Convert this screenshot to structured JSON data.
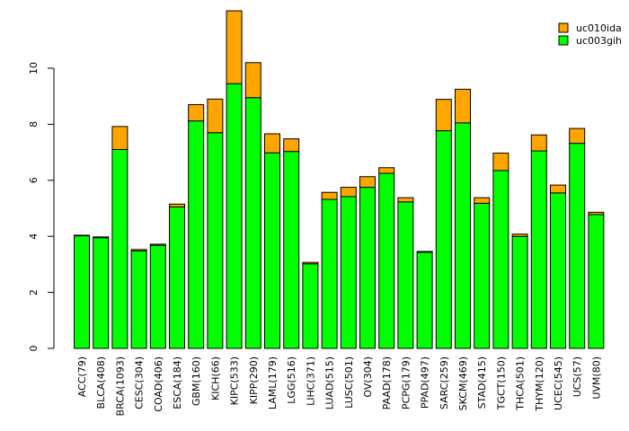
{
  "chart_data": {
    "type": "bar",
    "stacked": true,
    "title": "",
    "xlabel": "",
    "ylabel": "",
    "ylim": [
      0,
      12
    ],
    "yticks": [
      0,
      2,
      4,
      6,
      8,
      10
    ],
    "legend_position": "top-right",
    "categories": [
      "ACC(79)",
      "BLCA(408)",
      "BRCA(1093)",
      "CESC(304)",
      "COAD(406)",
      "ESCA(184)",
      "GBM(160)",
      "KICH(66)",
      "KIPC(533)",
      "KIPP(290)",
      "LAML(179)",
      "LGG(516)",
      "LIHC(371)",
      "LUAD(515)",
      "LUSC(501)",
      "OV(304)",
      "PAAD(178)",
      "PCPG(179)",
      "PPAD(497)",
      "SARC(259)",
      "SKCM(469)",
      "STAD(415)",
      "TGCT(150)",
      "THCA(501)",
      "THYM(120)",
      "UCEC(545)",
      "UCS(57)",
      "UVM(80)"
    ],
    "series": [
      {
        "name": "uc003gih",
        "color": "#00ff00",
        "values": [
          4.02,
          3.95,
          7.1,
          3.48,
          3.68,
          5.05,
          8.12,
          7.7,
          9.45,
          8.95,
          6.98,
          7.03,
          3.02,
          5.32,
          5.42,
          5.75,
          6.25,
          5.23,
          3.43,
          7.77,
          8.05,
          5.18,
          6.35,
          4.0,
          7.05,
          5.55,
          7.32,
          4.78
        ]
      },
      {
        "name": "uc010ida",
        "color": "#ffa500",
        "values": [
          0.02,
          0.03,
          0.82,
          0.05,
          0.04,
          0.1,
          0.58,
          1.2,
          2.6,
          1.25,
          0.68,
          0.45,
          0.05,
          0.25,
          0.33,
          0.38,
          0.2,
          0.15,
          0.03,
          1.12,
          1.2,
          0.2,
          0.62,
          0.08,
          0.57,
          0.28,
          0.53,
          0.08
        ]
      }
    ]
  }
}
